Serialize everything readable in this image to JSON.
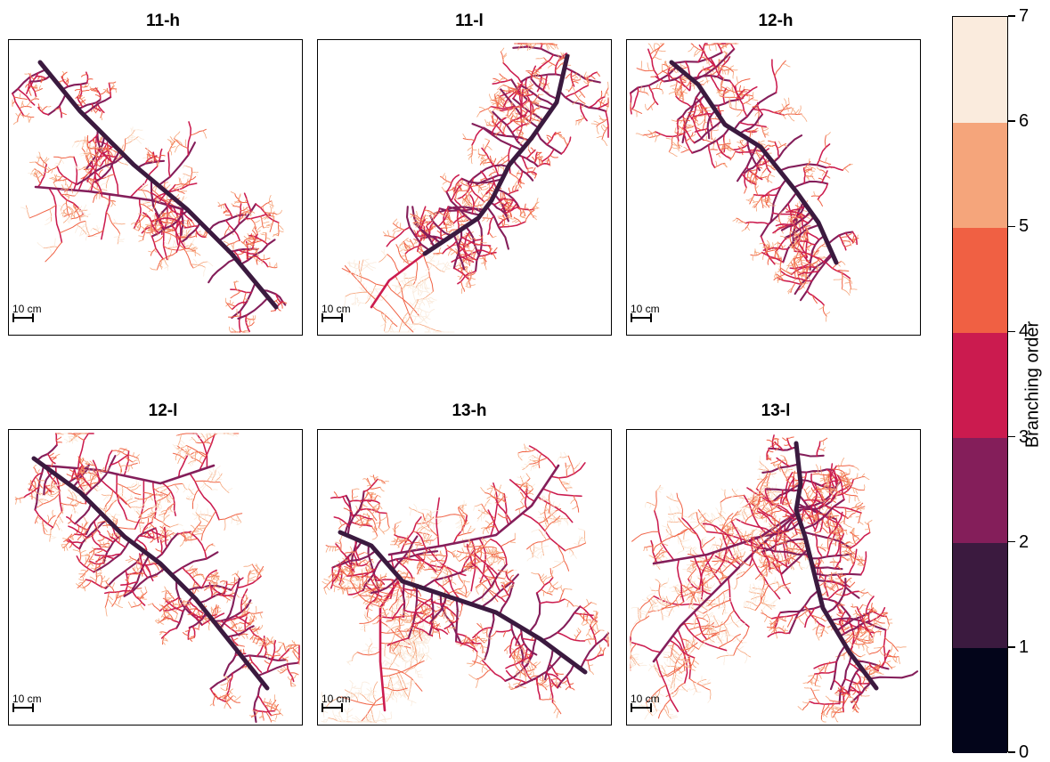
{
  "panels": [
    {
      "title": "11-h",
      "scale_label": "10 cm"
    },
    {
      "title": "11-l",
      "scale_label": "10 cm"
    },
    {
      "title": "12-h",
      "scale_label": "10 cm"
    },
    {
      "title": "12-l",
      "scale_label": "10 cm"
    },
    {
      "title": "13-h",
      "scale_label": "10 cm"
    },
    {
      "title": "13-l",
      "scale_label": "10 cm"
    }
  ],
  "colorbar": {
    "title": "Branching order",
    "ticks": [
      "0",
      "1",
      "2",
      "3",
      "4",
      "5",
      "6",
      "7"
    ],
    "colors": [
      "#03051a",
      "#3b1a3f",
      "#841e5a",
      "#cb1b4f",
      "#f06043",
      "#f5a57b",
      "#faebdd"
    ]
  }
}
